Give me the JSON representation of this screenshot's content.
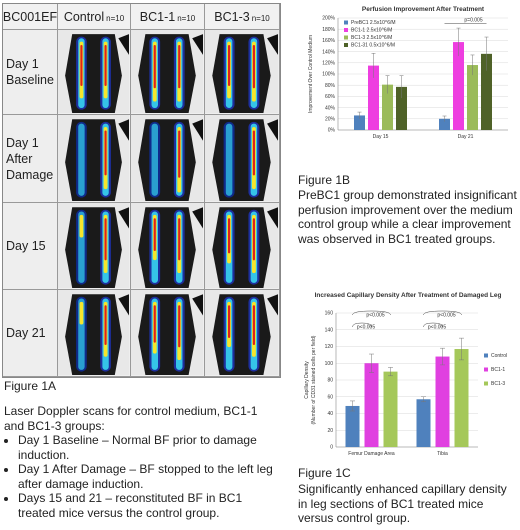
{
  "scan_panel": {
    "id_label": "BC001EF",
    "columns": [
      {
        "label": "Control",
        "n": "n=10"
      },
      {
        "label": "BC1-1",
        "n": "n=10"
      },
      {
        "label": "BC1-3",
        "n": "n=10"
      }
    ],
    "rows": [
      {
        "line1": "Day 1",
        "line2": "Baseline"
      },
      {
        "line1": "Day 1",
        "line2": "After Damage"
      },
      {
        "line1": "Day 15",
        "line2": ""
      },
      {
        "line1": "Day 21",
        "line2": ""
      }
    ]
  },
  "fig1a": {
    "label": "Figure 1A",
    "intro": "Laser Doppler scans for control medium, BC1-1 and BC1-3 groups:",
    "bullets": [
      "Day 1 Baseline – Normal BF prior to damage induction.",
      "Day 1 After Damage – BF stopped to the left leg after damage induction.",
      "Days 15 and 21 – reconstituted BF in BC1 treated mice versus the control group."
    ]
  },
  "fig1b": {
    "label": "Figure 1B",
    "caption": "PreBC1 group demonstrated insignificant perfusion improvement over the medium control group while a clear improvement was observed in BC1 treated groups."
  },
  "fig1c": {
    "label": "Figure 1C",
    "caption": "Significantly enhanced capillary density in leg sections of BC1 treated mice versus control group."
  },
  "chart_data": [
    {
      "type": "bar",
      "title": "Perfusion Improvement After Treatment",
      "ylabel": "Improvement Over Control Medium",
      "xlabel": "",
      "categories": [
        "Day 15",
        "Day 21"
      ],
      "ylim": [
        0,
        200
      ],
      "yticks": [
        "0%",
        "20%",
        "40%",
        "60%",
        "80%",
        "100%",
        "120%",
        "140%",
        "160%",
        "180%",
        "200%"
      ],
      "grid": true,
      "legend_position": "top-left",
      "series": [
        {
          "name": "PreBC1 2.5x10^6/M",
          "color": "#4f81bd",
          "values": [
            26,
            20
          ],
          "errors": [
            6,
            5
          ]
        },
        {
          "name": "BC1-1 2.5x10^6/M",
          "color": "#ee3ee0",
          "values": [
            115,
            157
          ],
          "errors": [
            22,
            25
          ]
        },
        {
          "name": "BC1-3 2.5x10^6/M",
          "color": "#9bbb59",
          "values": [
            81,
            116
          ],
          "errors": [
            16,
            18
          ]
        },
        {
          "name": "BC1-31 0.5x10^6/M",
          "color": "#4f6228",
          "values": [
            77,
            136
          ],
          "errors": [
            20,
            30
          ]
        }
      ],
      "annotations": [
        {
          "text": "p=0.005",
          "category": "Day 21"
        }
      ]
    },
    {
      "type": "bar",
      "title": "Increased Capillary Density After Treatment of Damaged Leg",
      "ylabel": "Capillary Density",
      "ylabel2": "(Number of CD31 stained cells per field)",
      "xlabel": "",
      "categories": [
        "Femur Damage Area",
        "Tibia"
      ],
      "ylim": [
        0,
        160
      ],
      "yticks": [
        "0",
        "20",
        "40",
        "60",
        "80",
        "100",
        "120",
        "140",
        "160"
      ],
      "grid": true,
      "legend_position": "right",
      "series": [
        {
          "name": "Control",
          "color": "#4f81bd",
          "values": [
            49,
            57
          ],
          "errors": [
            6,
            3
          ]
        },
        {
          "name": "BC1-1",
          "color": "#e040e0",
          "values": [
            100,
            108
          ],
          "errors": [
            11,
            10
          ]
        },
        {
          "name": "BC1-3",
          "color": "#a5c85a",
          "values": [
            90,
            117
          ],
          "errors": [
            5,
            13
          ]
        }
      ],
      "annotations": [
        {
          "text": "p<0.005",
          "category": "Femur Damage Area"
        },
        {
          "text": "p<0.005",
          "category": "Femur Damage Area"
        },
        {
          "text": "p<0.005",
          "category": "Tibia"
        },
        {
          "text": "p<0.005",
          "category": "Tibia"
        }
      ]
    }
  ]
}
